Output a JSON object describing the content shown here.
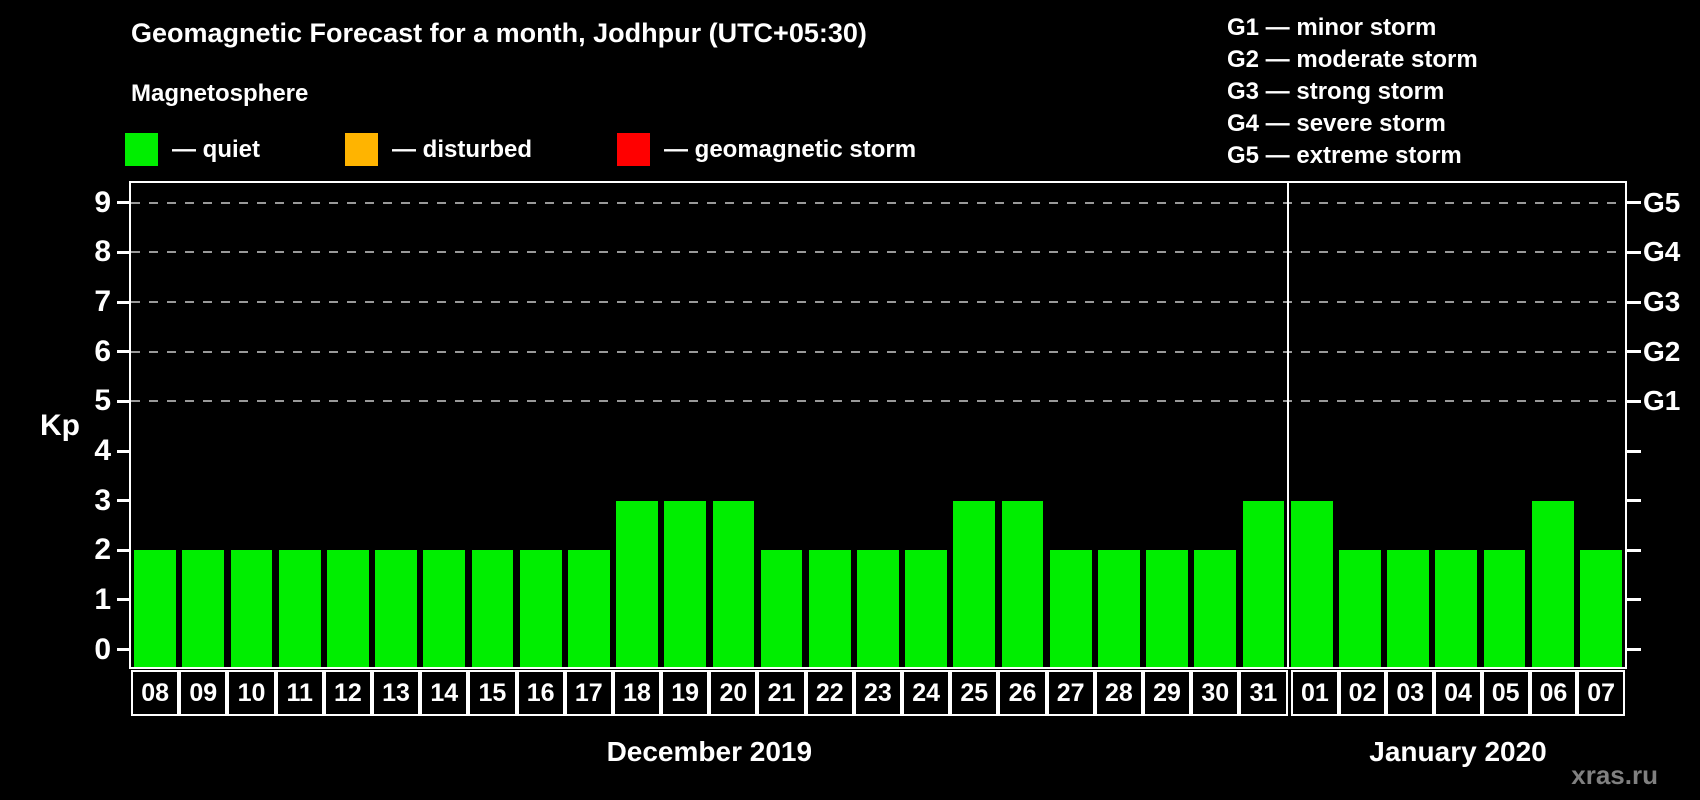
{
  "title": "Geomagnetic Forecast for a month, Jodhpur (UTC+05:30)",
  "subtitle": "Magnetosphere",
  "magnetosphere_legend": [
    {
      "label": "— quiet",
      "color": "#00ee00"
    },
    {
      "label": "— disturbed",
      "color": "#ffb400"
    },
    {
      "label": "— geomagnetic storm",
      "color": "#ff0000"
    }
  ],
  "storm_scale_legend": [
    "G1 — minor storm",
    "G2 — moderate storm",
    "G3 — strong storm",
    "G4 — severe storm",
    "G5 — extreme storm"
  ],
  "watermark": "xras.ru",
  "chart_data": {
    "type": "bar",
    "title": "Geomagnetic Forecast for a month, Jodhpur (UTC+05:30)",
    "ylabel": "Kp",
    "yticks": [
      0,
      1,
      2,
      3,
      4,
      5,
      6,
      7,
      8,
      9
    ],
    "ylim": [
      -0.35,
      9.4
    ],
    "grid": "dashed horizontal lines at Kp 5-9",
    "gridline_values": [
      5,
      6,
      7,
      8,
      9
    ],
    "right_axis_labels": [
      {
        "value": 5,
        "label": "G1"
      },
      {
        "value": 6,
        "label": "G2"
      },
      {
        "value": 7,
        "label": "G3"
      },
      {
        "value": 8,
        "label": "G4"
      },
      {
        "value": 9,
        "label": "G5"
      }
    ],
    "bar_color": "#00ee00",
    "status_colors": {
      "quiet": "#00ee00",
      "disturbed": "#ffb400",
      "storm": "#ff0000"
    },
    "legend_position": "top-left",
    "groups": [
      {
        "month_label": "December 2019",
        "categories": [
          "08",
          "09",
          "10",
          "11",
          "12",
          "13",
          "14",
          "15",
          "16",
          "17",
          "18",
          "19",
          "20",
          "21",
          "22",
          "23",
          "24",
          "25",
          "26",
          "27",
          "28",
          "29",
          "30",
          "31"
        ],
        "values": [
          2,
          2,
          2,
          2,
          2,
          2,
          2,
          2,
          2,
          2,
          3,
          3,
          3,
          2,
          2,
          2,
          2,
          3,
          3,
          2,
          2,
          2,
          2,
          3
        ]
      },
      {
        "month_label": "January 2020",
        "categories": [
          "01",
          "02",
          "03",
          "04",
          "05",
          "06",
          "07"
        ],
        "values": [
          3,
          2,
          2,
          2,
          2,
          3,
          2
        ]
      }
    ]
  }
}
